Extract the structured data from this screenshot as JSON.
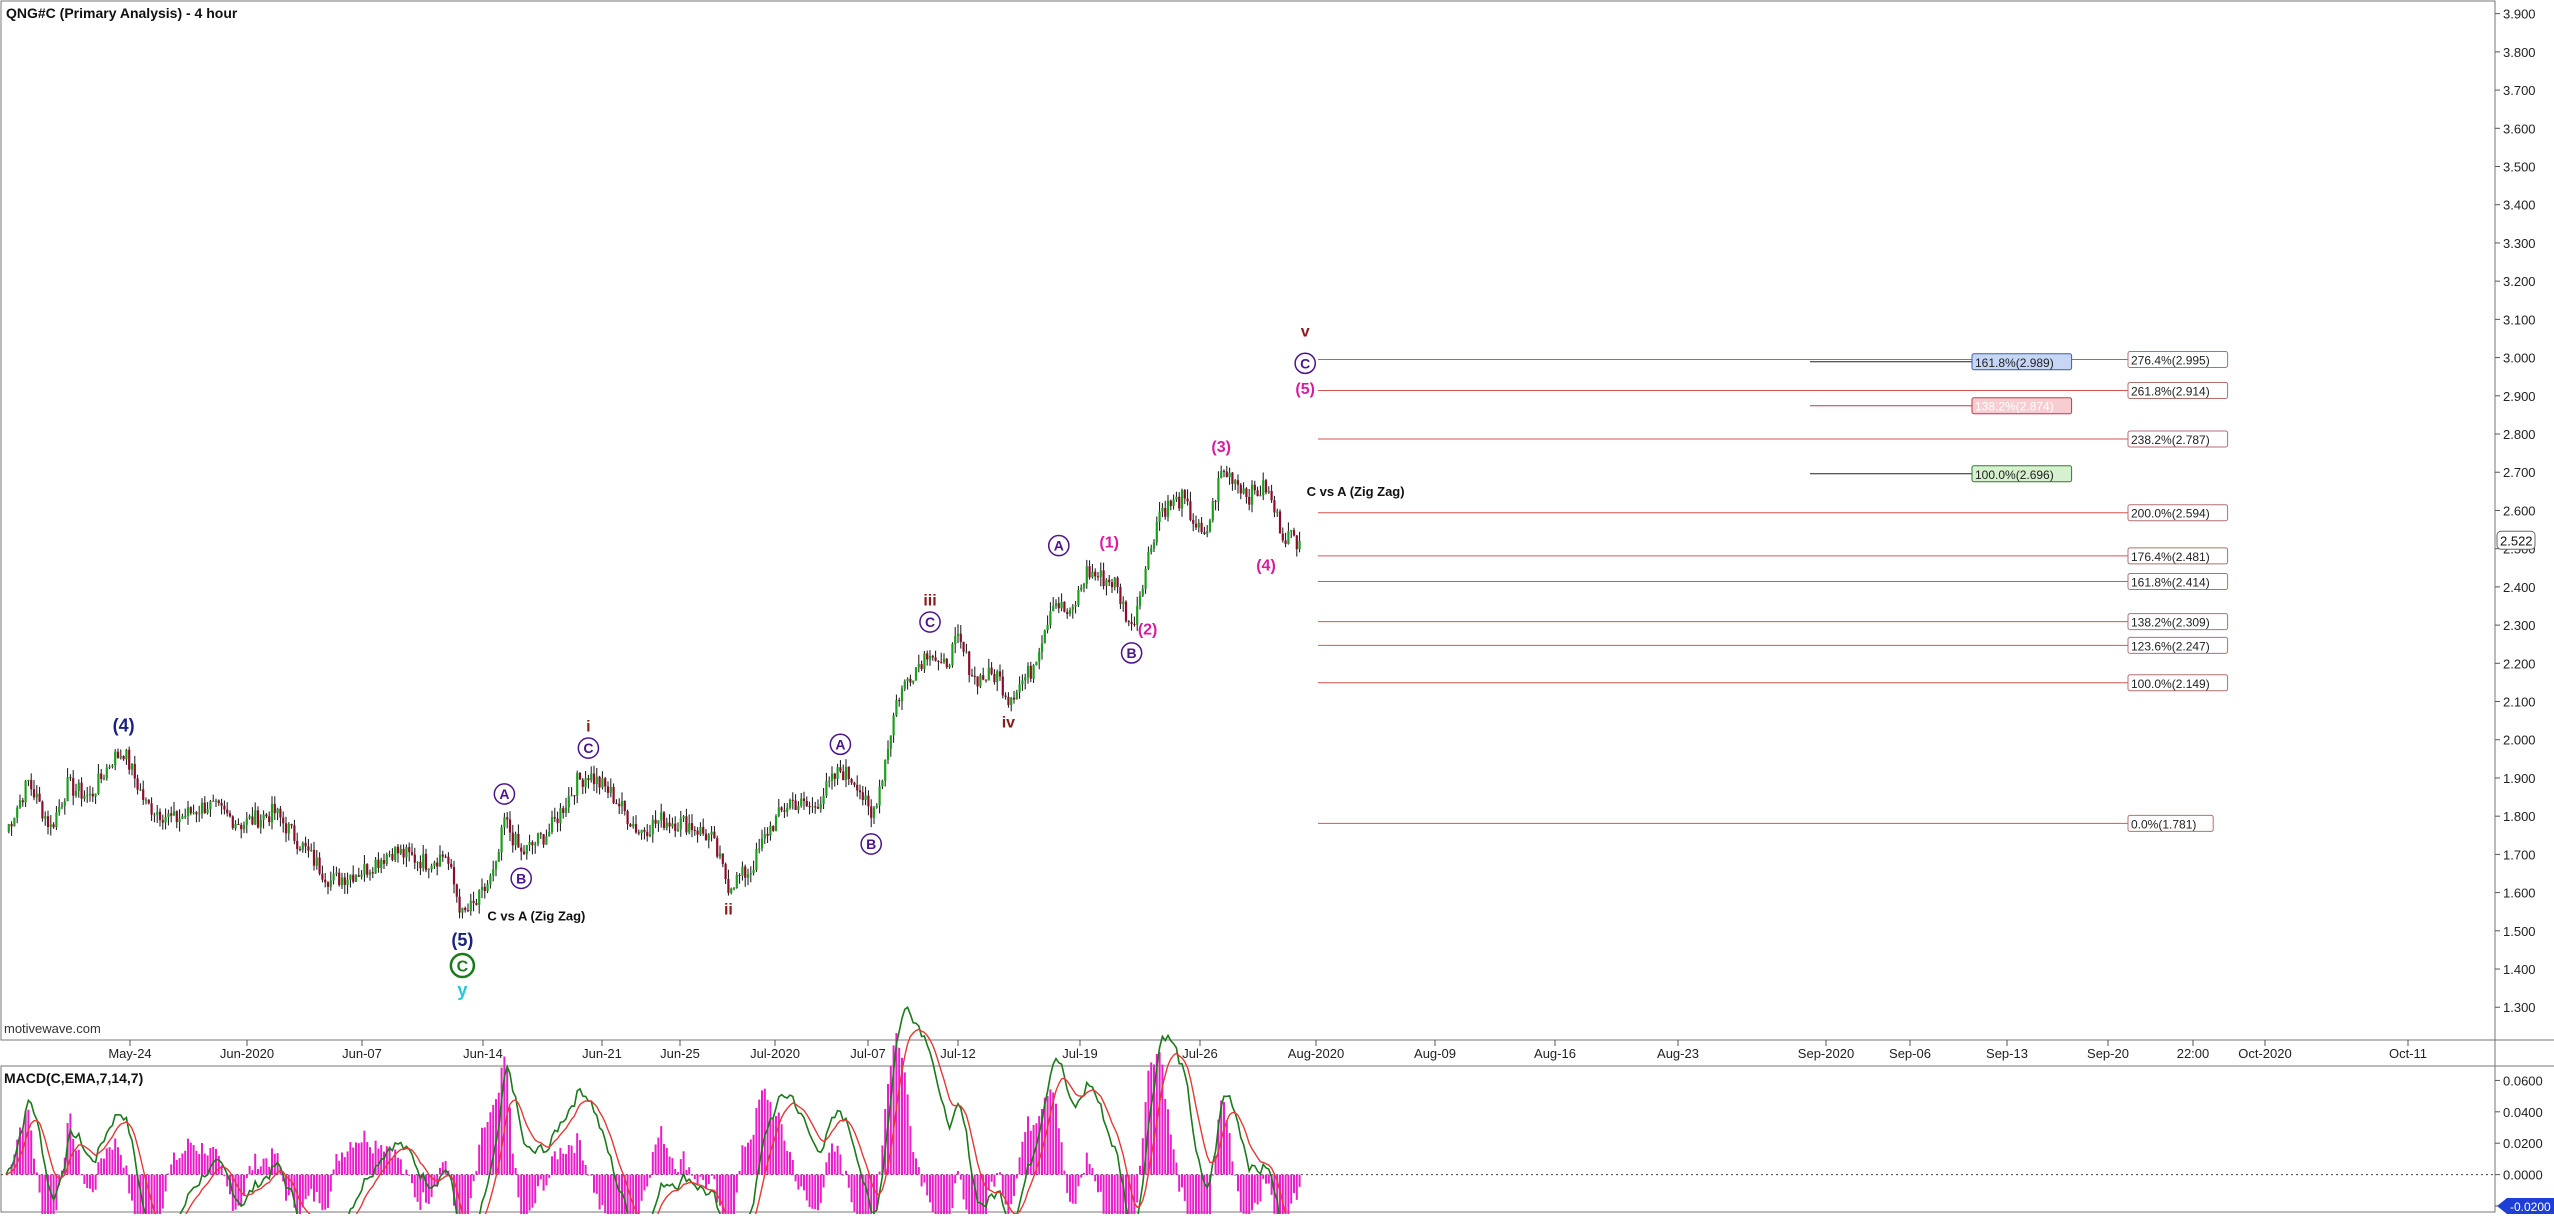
{
  "window": {
    "title": "QNG#C (Primary Analysis) - 4 hour",
    "watermark": "motivewave.com"
  },
  "chart_data": [
    {
      "type": "candlestick",
      "title": "QNG#C (Primary Analysis) - 4 hour",
      "y_ticks": [
        "3.900",
        "3.800",
        "3.700",
        "3.600",
        "3.500",
        "3.400",
        "3.300",
        "3.200",
        "3.100",
        "3.000",
        "2.900",
        "2.800",
        "2.700",
        "2.600",
        "2.500",
        "2.400",
        "2.300",
        "2.200",
        "2.100",
        "2.000",
        "1.900",
        "1.800",
        "1.700",
        "1.600",
        "1.500",
        "1.400",
        "1.300"
      ],
      "ylim": [
        1.23,
        3.92
      ],
      "last_price": "2.522",
      "x_labels": [
        "May-24",
        "Jun-2020",
        "Jun-07",
        "Jun-14",
        "Jun-21",
        "Jun-25",
        "Jul-2020",
        "Jul-07",
        "Jul-12",
        "Jul-19",
        "Jul-26",
        "Aug-2020",
        "Aug-09",
        "Aug-16",
        "Aug-23",
        "Sep-2020",
        "Sep-06",
        "Sep-13",
        "Sep-20",
        "22:00",
        "Oct-2020",
        "Oct-11"
      ],
      "price_path": [
        {
          "i": 0,
          "p": 1.76
        },
        {
          "i": 8,
          "p": 1.89
        },
        {
          "i": 16,
          "p": 1.77
        },
        {
          "i": 22,
          "p": 1.88
        },
        {
          "i": 30,
          "p": 1.85
        },
        {
          "i": 38,
          "p": 1.95
        },
        {
          "i": 42,
          "p": 1.97
        },
        {
          "i": 50,
          "p": 1.83
        },
        {
          "i": 60,
          "p": 1.79
        },
        {
          "i": 72,
          "p": 1.83
        },
        {
          "i": 84,
          "p": 1.78
        },
        {
          "i": 96,
          "p": 1.81
        },
        {
          "i": 106,
          "p": 1.72
        },
        {
          "i": 116,
          "p": 1.63
        },
        {
          "i": 128,
          "p": 1.66
        },
        {
          "i": 138,
          "p": 1.71
        },
        {
          "i": 150,
          "p": 1.68
        },
        {
          "i": 157,
          "p": 1.7
        },
        {
          "i": 163,
          "p": 1.54
        },
        {
          "i": 168,
          "p": 1.57
        },
        {
          "i": 175,
          "p": 1.66
        },
        {
          "i": 178,
          "p": 1.79
        },
        {
          "i": 184,
          "p": 1.7
        },
        {
          "i": 194,
          "p": 1.76
        },
        {
          "i": 204,
          "p": 1.89
        },
        {
          "i": 208,
          "p": 1.91
        },
        {
          "i": 216,
          "p": 1.86
        },
        {
          "i": 226,
          "p": 1.76
        },
        {
          "i": 234,
          "p": 1.79
        },
        {
          "i": 244,
          "p": 1.78
        },
        {
          "i": 252,
          "p": 1.74
        },
        {
          "i": 258,
          "p": 1.62
        },
        {
          "i": 266,
          "p": 1.66
        },
        {
          "i": 272,
          "p": 1.76
        },
        {
          "i": 280,
          "p": 1.84
        },
        {
          "i": 288,
          "p": 1.82
        },
        {
          "i": 298,
          "p": 1.92
        },
        {
          "i": 304,
          "p": 1.89
        },
        {
          "i": 309,
          "p": 1.79
        },
        {
          "i": 313,
          "p": 1.91
        },
        {
          "i": 318,
          "p": 2.1
        },
        {
          "i": 322,
          "p": 2.16
        },
        {
          "i": 330,
          "p": 2.24
        },
        {
          "i": 334,
          "p": 2.18
        },
        {
          "i": 340,
          "p": 2.26
        },
        {
          "i": 346,
          "p": 2.16
        },
        {
          "i": 354,
          "p": 2.17
        },
        {
          "i": 358,
          "p": 2.11
        },
        {
          "i": 366,
          "p": 2.18
        },
        {
          "i": 370,
          "p": 2.27
        },
        {
          "i": 374,
          "p": 2.37
        },
        {
          "i": 380,
          "p": 2.32
        },
        {
          "i": 386,
          "p": 2.44
        },
        {
          "i": 396,
          "p": 2.41
        },
        {
          "i": 402,
          "p": 2.29
        },
        {
          "i": 406,
          "p": 2.42
        },
        {
          "i": 412,
          "p": 2.6
        },
        {
          "i": 420,
          "p": 2.63
        },
        {
          "i": 428,
          "p": 2.52
        },
        {
          "i": 434,
          "p": 2.7
        },
        {
          "i": 438,
          "p": 2.69
        },
        {
          "i": 444,
          "p": 2.64
        },
        {
          "i": 450,
          "p": 2.66
        },
        {
          "i": 456,
          "p": 2.54
        },
        {
          "i": 462,
          "p": 2.52
        }
      ],
      "fib_levels": [
        {
          "label": "276.4%(2.995)",
          "price": 2.995,
          "line_start": "Aug-2020"
        },
        {
          "label": "261.8%(2.914)",
          "price": 2.914,
          "line_start": "Aug-2020"
        },
        {
          "label": "238.2%(2.787)",
          "price": 2.787,
          "line_start": "Aug-2020"
        },
        {
          "label": "200.0%(2.594)",
          "price": 2.594,
          "line_start": "Aug-2020"
        },
        {
          "label": "176.4%(2.481)",
          "price": 2.481,
          "line_start": "Aug-2020"
        },
        {
          "label": "161.8%(2.414)",
          "price": 2.414,
          "line_start": "Aug-2020"
        },
        {
          "label": "138.2%(2.309)",
          "price": 2.309,
          "line_start": "Aug-2020"
        },
        {
          "label": "123.6%(2.247)",
          "price": 2.247,
          "line_start": "Aug-2020"
        },
        {
          "label": "100.0%(2.149)",
          "price": 2.149,
          "line_start": "Aug-2020"
        },
        {
          "label": "0.0%(1.781)",
          "price": 1.781,
          "line_start": "Aug-2020"
        }
      ],
      "projection_boxes": [
        {
          "label": "161.8%(2.989)",
          "price": 2.989,
          "style": "blue"
        },
        {
          "label": "138.2%(2.874)",
          "price": 2.874,
          "style": "red"
        },
        {
          "label": "100.0%(2.696)",
          "price": 2.696,
          "style": "green"
        }
      ],
      "annotations": [
        {
          "text": "(4)",
          "kind": "plain",
          "color": "#1a237e",
          "at": {
            "i": 42,
            "p": 1.97
          },
          "pos": "above",
          "size": 18
        },
        {
          "text": "(5)",
          "kind": "plain",
          "color": "#1a237e",
          "at": {
            "i": 163,
            "p": 1.54
          },
          "pos": "below",
          "size": 18
        },
        {
          "text": "C",
          "kind": "circle",
          "color": "#1b7a1b",
          "at": {
            "i": 163,
            "p": 1.54
          },
          "pos": "below2",
          "size": 16
        },
        {
          "text": "y",
          "kind": "plain",
          "color": "#26c6da",
          "at": {
            "i": 163,
            "p": 1.54
          },
          "pos": "below3",
          "size": 18
        },
        {
          "text": "C vs A (Zig Zag)",
          "kind": "plain",
          "color": "#111111",
          "at": {
            "i": 168,
            "p": 1.57
          },
          "pos": "note",
          "size": 13
        },
        {
          "text": "A",
          "kind": "circle",
          "color": "#4a148c",
          "at": {
            "i": 178,
            "p": 1.79
          },
          "pos": "above",
          "size": 14
        },
        {
          "text": "B",
          "kind": "circle",
          "color": "#4a148c",
          "at": {
            "i": 184,
            "p": 1.7
          },
          "pos": "below",
          "size": 14
        },
        {
          "text": "i",
          "kind": "plain",
          "color": "#8b1a1a",
          "at": {
            "i": 208,
            "p": 1.91
          },
          "pos": "above2",
          "size": 16
        },
        {
          "text": "C",
          "kind": "circle",
          "color": "#4a148c",
          "at": {
            "i": 208,
            "p": 1.91
          },
          "pos": "above",
          "size": 14
        },
        {
          "text": "ii",
          "kind": "plain",
          "color": "#8b1a1a",
          "at": {
            "i": 258,
            "p": 1.62
          },
          "pos": "below",
          "size": 16
        },
        {
          "text": "A",
          "kind": "circle",
          "color": "#4a148c",
          "at": {
            "i": 298,
            "p": 1.92
          },
          "pos": "above",
          "size": 14
        },
        {
          "text": "B",
          "kind": "circle",
          "color": "#4a148c",
          "at": {
            "i": 309,
            "p": 1.79
          },
          "pos": "below",
          "size": 14
        },
        {
          "text": "iii",
          "kind": "plain",
          "color": "#8b1a1a",
          "at": {
            "i": 330,
            "p": 2.24
          },
          "pos": "above2",
          "size": 16
        },
        {
          "text": "C",
          "kind": "circle",
          "color": "#4a148c",
          "at": {
            "i": 330,
            "p": 2.24
          },
          "pos": "above",
          "size": 14
        },
        {
          "text": "iv",
          "kind": "plain",
          "color": "#8b1a1a",
          "at": {
            "i": 358,
            "p": 2.11
          },
          "pos": "below",
          "size": 16
        },
        {
          "text": "A",
          "kind": "circle",
          "color": "#4a148c",
          "at": {
            "i": 376,
            "p": 2.44
          },
          "pos": "above",
          "size": 14
        },
        {
          "text": "(1)",
          "kind": "plain",
          "color": "#d81b9f",
          "at": {
            "i": 394,
            "p": 2.45
          },
          "pos": "above",
          "size": 16
        },
        {
          "text": "(2)",
          "kind": "plain",
          "color": "#d81b9f",
          "at": {
            "i": 402,
            "p": 2.29
          },
          "pos": "right",
          "size": 16
        },
        {
          "text": "B",
          "kind": "circle",
          "color": "#4a148c",
          "at": {
            "i": 402,
            "p": 2.29
          },
          "pos": "below",
          "size": 14
        },
        {
          "text": "(3)",
          "kind": "plain",
          "color": "#d81b9f",
          "at": {
            "i": 434,
            "p": 2.7
          },
          "pos": "above",
          "size": 16
        },
        {
          "text": "(4)",
          "kind": "plain",
          "color": "#d81b9f",
          "at": {
            "i": 450,
            "p": 2.52
          },
          "pos": "below",
          "size": 16
        },
        {
          "text": "C vs A (Zig Zag)",
          "kind": "plain",
          "color": "#111111",
          "at": {
            "i": 482,
            "p": 2.65
          },
          "pos": "center",
          "size": 13
        },
        {
          "text": "(5)",
          "kind": "plain",
          "color": "#d81b9f",
          "at": {
            "i": 464,
            "p": 2.92
          },
          "pos": "center",
          "size": 16
        },
        {
          "text": "C",
          "kind": "circle",
          "color": "#4a148c",
          "at": {
            "i": 464,
            "p": 2.985
          },
          "pos": "center",
          "size": 14
        },
        {
          "text": "v",
          "kind": "plain",
          "color": "#8b1a1a",
          "at": {
            "i": 464,
            "p": 3.07
          },
          "pos": "center",
          "size": 16
        }
      ]
    },
    {
      "type": "macd",
      "title": "MACD(C,EMA,7,14,7)",
      "y_ticks": [
        "0.0600",
        "0.0400",
        "0.0200",
        "0.0000",
        "-0.0200"
      ],
      "ylim": [
        -0.02,
        0.066
      ],
      "last_value": "-0.0200",
      "colors": {
        "macd": "#1b7a1b",
        "signal": "#e53935",
        "histogram": "#e91ec8"
      }
    }
  ]
}
